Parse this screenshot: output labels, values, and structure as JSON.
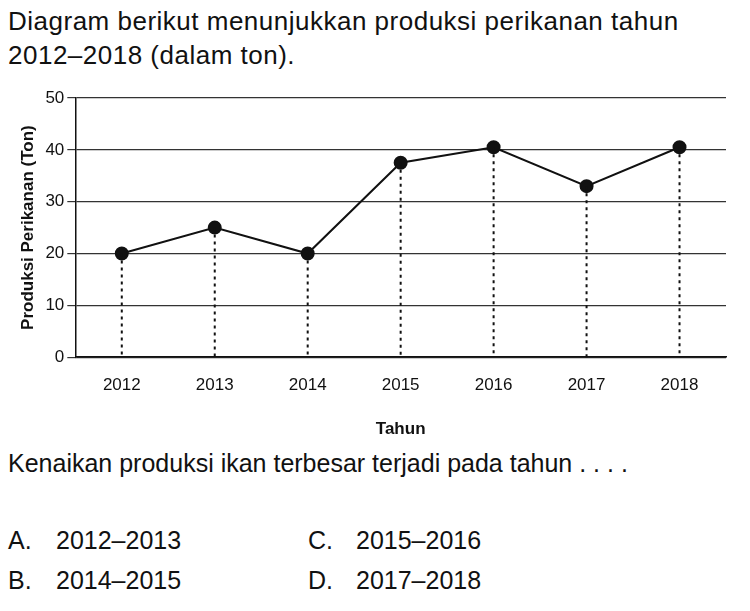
{
  "intro": "Diagram berikut menunjukkan produksi perikanan tahun 2012–2018 (dalam ton).",
  "chart_data": {
    "type": "line",
    "x_label": "Tahun",
    "y_label": "Produksi Perikanan (Ton)",
    "categories": [
      "2012",
      "2013",
      "2014",
      "2015",
      "2016",
      "2017",
      "2018"
    ],
    "values": [
      20,
      25,
      20,
      37.5,
      40.5,
      33,
      40.5
    ],
    "color": "#111111",
    "marker": "circle",
    "line_style": "solid",
    "ylim": [
      0,
      50
    ],
    "yticks": [
      0,
      10,
      20,
      30,
      40,
      50
    ],
    "grid": true
  },
  "question": "Kenaikan produksi ikan terbesar terjadi pada tahun . . . .",
  "options": [
    {
      "label": "A.",
      "text": "2012–2013"
    },
    {
      "label": "B.",
      "text": "2014–2015"
    },
    {
      "label": "C.",
      "text": "2015–2016"
    },
    {
      "label": "D.",
      "text": "2017–2018"
    }
  ]
}
